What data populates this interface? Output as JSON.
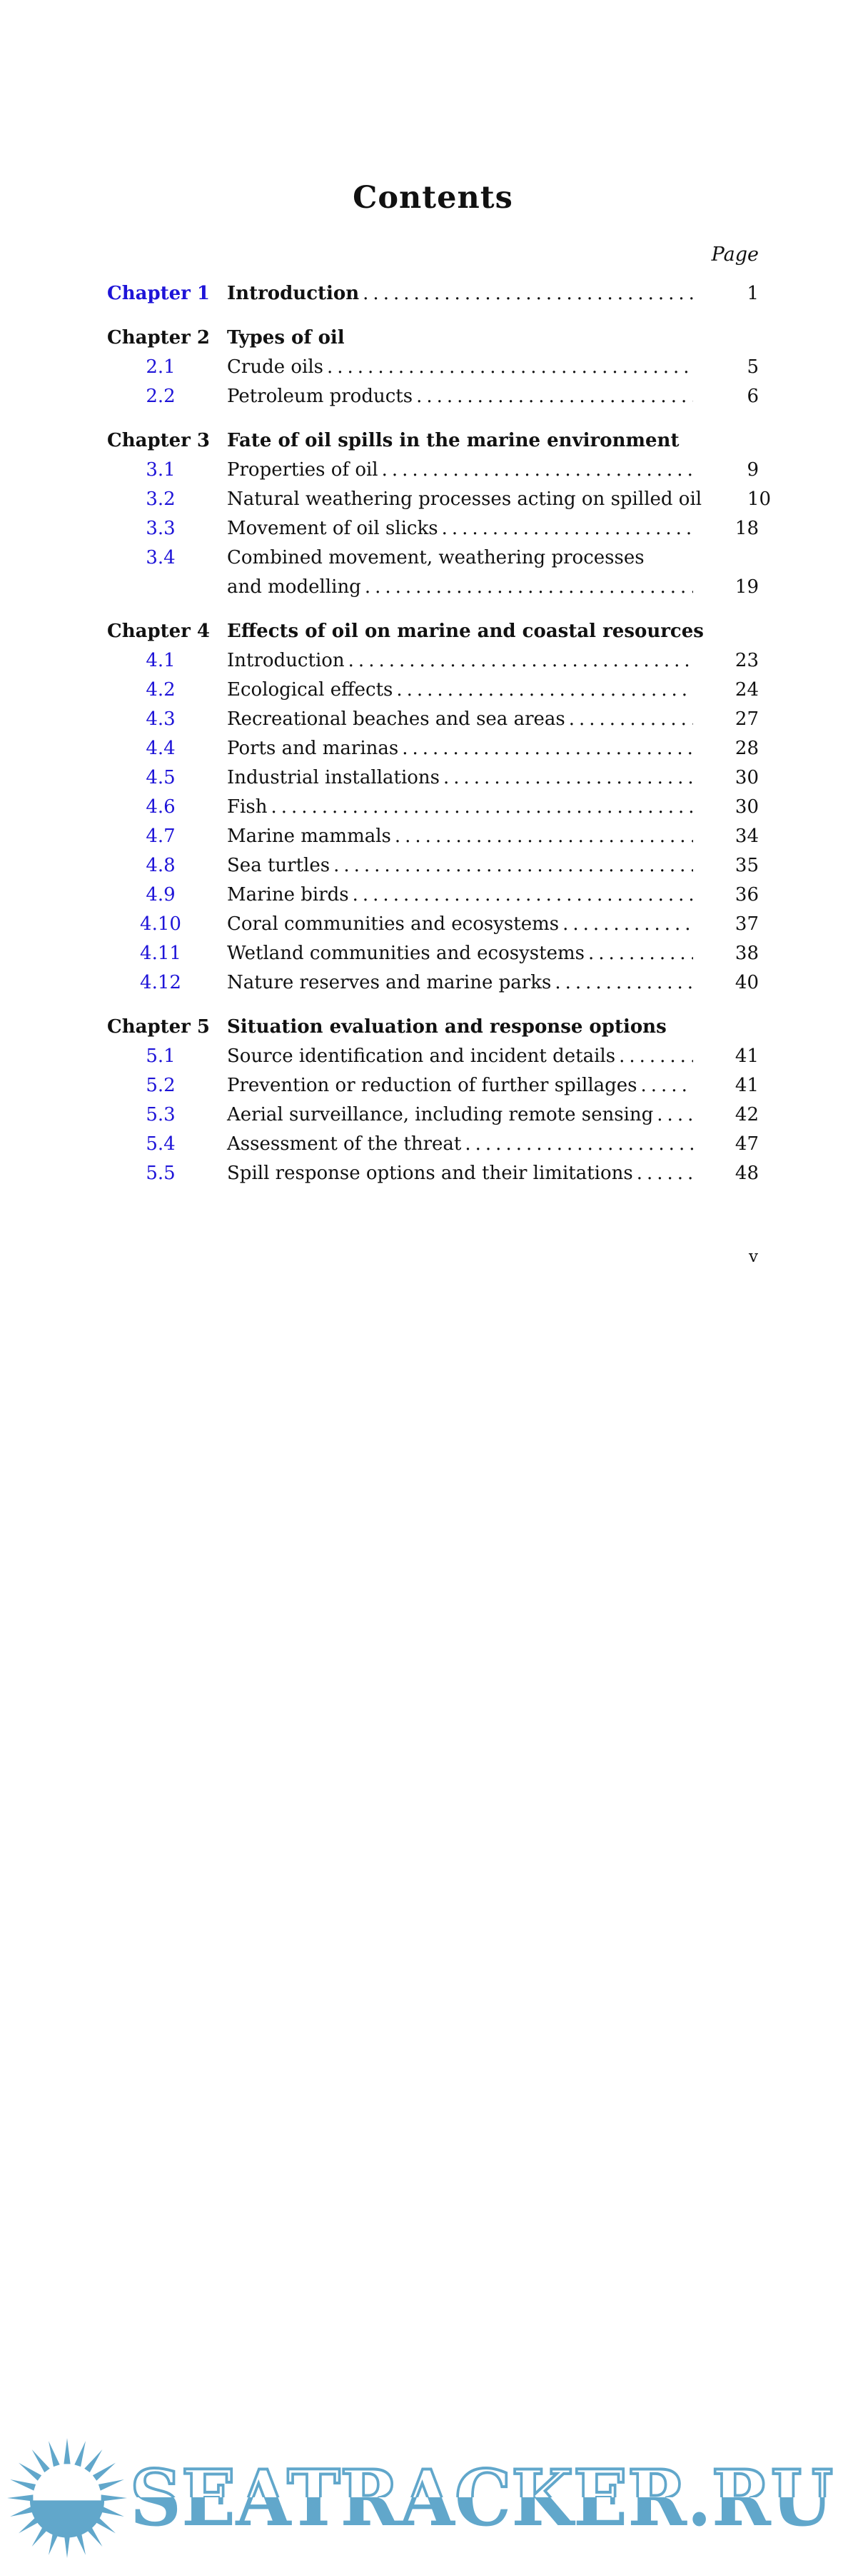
{
  "page": {
    "title": "Contents",
    "page_column_label": "Page",
    "folio": "v"
  },
  "toc": {
    "entries": [
      {
        "kind": "chapter",
        "num": "Chapter 1",
        "title": "Introduction",
        "page": "1",
        "link": true
      },
      {
        "kind": "chapter",
        "num": "Chapter 2",
        "title": "Types of oil"
      },
      {
        "kind": "section",
        "num": "2.1",
        "title": "Crude oils",
        "page": "5"
      },
      {
        "kind": "section",
        "num": "2.2",
        "title": "Petroleum products",
        "page": "6"
      },
      {
        "kind": "chapter",
        "num": "Chapter 3",
        "title": "Fate of oil spills in the marine environment"
      },
      {
        "kind": "section",
        "num": "3.1",
        "title": "Properties of oil",
        "page": "9"
      },
      {
        "kind": "section",
        "num": "3.2",
        "title": "Natural weathering processes acting on spilled oil",
        "page": "10"
      },
      {
        "kind": "section",
        "num": "3.3",
        "title": "Movement of oil slicks",
        "page": "18"
      },
      {
        "kind": "section",
        "num": "3.4",
        "title": "Combined movement, weathering processes",
        "title2": "and modelling",
        "page": "19"
      },
      {
        "kind": "chapter",
        "num": "Chapter 4",
        "title": "Effects of oil on marine and coastal resources"
      },
      {
        "kind": "section",
        "num": "4.1",
        "title": "Introduction",
        "page": "23"
      },
      {
        "kind": "section",
        "num": "4.2",
        "title": "Ecological effects",
        "page": "24"
      },
      {
        "kind": "section",
        "num": "4.3",
        "title": "Recreational beaches and sea areas",
        "page": "27"
      },
      {
        "kind": "section",
        "num": "4.4",
        "title": "Ports and marinas",
        "page": "28"
      },
      {
        "kind": "section",
        "num": "4.5",
        "title": "Industrial installations",
        "page": "30"
      },
      {
        "kind": "section",
        "num": "4.6",
        "title": "Fish",
        "page": "30"
      },
      {
        "kind": "section",
        "num": "4.7",
        "title": "Marine mammals",
        "page": "34"
      },
      {
        "kind": "section",
        "num": "4.8",
        "title": "Sea turtles",
        "page": "35"
      },
      {
        "kind": "section",
        "num": "4.9",
        "title": "Marine birds",
        "page": "36"
      },
      {
        "kind": "section",
        "num": "4.10",
        "title": "Coral communities and ecosystems",
        "page": "37"
      },
      {
        "kind": "section",
        "num": "4.11",
        "title": "Wetland communities and ecosystems",
        "page": "38"
      },
      {
        "kind": "section",
        "num": "4.12",
        "title": "Nature reserves and marine parks",
        "page": "40"
      },
      {
        "kind": "chapter",
        "num": "Chapter 5",
        "title": "Situation evaluation and response options"
      },
      {
        "kind": "section",
        "num": "5.1",
        "title": "Source identification and incident details",
        "page": "41"
      },
      {
        "kind": "section",
        "num": "5.2",
        "title": "Prevention or reduction of further spillages",
        "page": "41"
      },
      {
        "kind": "section",
        "num": "5.3",
        "title": "Aerial surveillance, including remote sensing",
        "page": "42"
      },
      {
        "kind": "section",
        "num": "5.4",
        "title": "Assessment of the threat",
        "page": "47"
      },
      {
        "kind": "section",
        "num": "5.5",
        "title": "Spill response options and their limitations",
        "page": "48"
      }
    ]
  },
  "watermark": {
    "text": "SEATRACKER.RU",
    "icon": "sun-over-water-icon",
    "color": "#61a7cb"
  },
  "colors": {
    "link_blue": "#1e14d8",
    "text_black": "#111111"
  }
}
